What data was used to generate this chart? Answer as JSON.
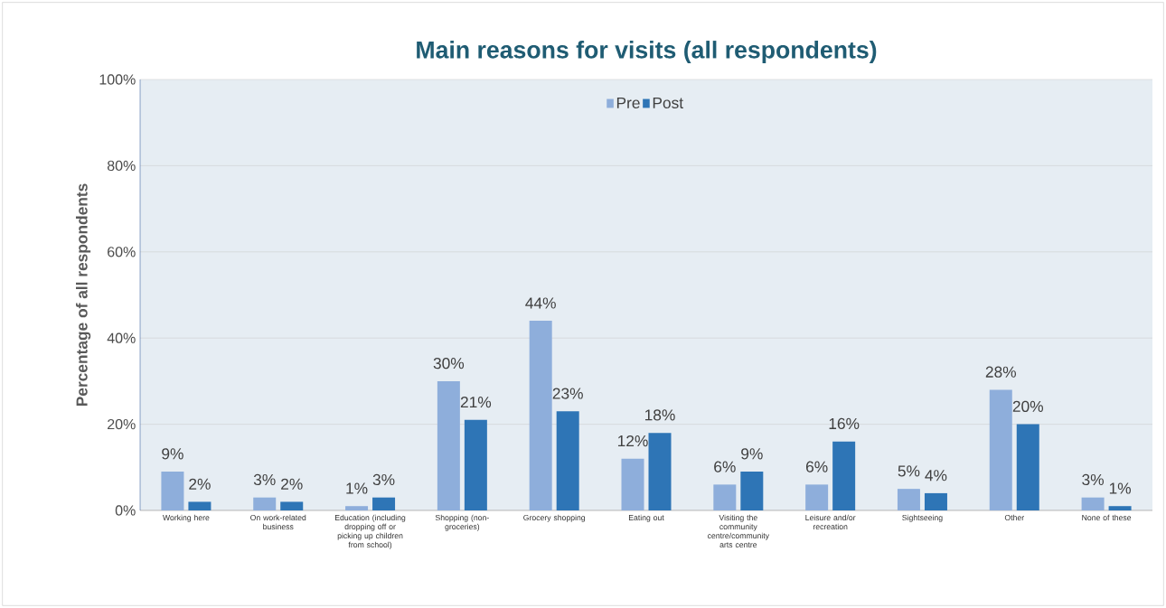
{
  "chart_data": {
    "type": "bar",
    "title": "Main reasons for visits (all respondents)",
    "ylabel": "Percentage of all respondents",
    "categories": [
      "Working here",
      "On work-related business",
      "Education (including dropping off or picking up children from school)",
      "Shopping (non-groceries)",
      "Grocery shopping",
      "Eating out",
      "Visiting the community centre/community arts centre",
      "Leisure and/or recreation",
      "Sightseeing",
      "Other",
      "None of these"
    ],
    "series": [
      {
        "name": "Pre",
        "color": "#8eaedb",
        "values": [
          9,
          3,
          1,
          30,
          44,
          12,
          6,
          6,
          5,
          28,
          3
        ],
        "value_labels": [
          "9%",
          "3%",
          "1%",
          "30%",
          "44%",
          "12%",
          "6%",
          "6%",
          "5%",
          "28%",
          "3%"
        ]
      },
      {
        "name": "Post",
        "color": "#2e75b6",
        "values": [
          2,
          2,
          3,
          21,
          23,
          18,
          9,
          16,
          4,
          20,
          1
        ],
        "value_labels": [
          "2%",
          "2%",
          "3%",
          "21%",
          "23%",
          "18%",
          "9%",
          "16%",
          "4%",
          "20%",
          "1%"
        ]
      }
    ],
    "ylim": [
      0,
      100
    ],
    "yticks": [
      {
        "value": 0,
        "label": "0%"
      },
      {
        "value": 20,
        "label": "20%"
      },
      {
        "value": 40,
        "label": "40%"
      },
      {
        "value": 60,
        "label": "60%"
      },
      {
        "value": 80,
        "label": "80%"
      },
      {
        "value": 100,
        "label": "100%"
      }
    ],
    "grid": "y",
    "legend": "top"
  }
}
